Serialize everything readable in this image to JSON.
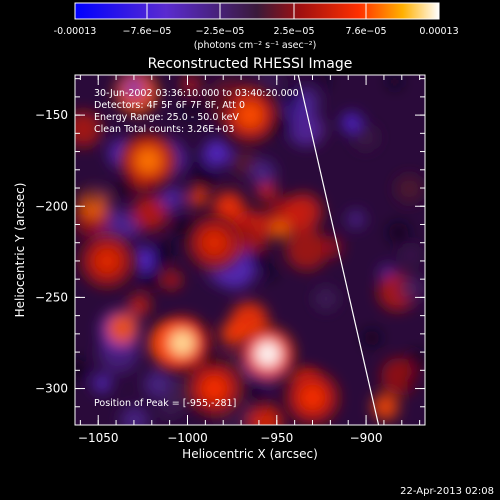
{
  "chart_data": {
    "type": "heatmap",
    "title": "Reconstructed RHESSI Image",
    "xlabel": "Heliocentric X (arcsec)",
    "ylabel": "Heliocentric Y (arcsec)",
    "xlim": [
      -1063,
      -867
    ],
    "ylim": [
      -320,
      -128
    ],
    "x_ticks": [
      -1050,
      -1000,
      -950,
      -900
    ],
    "y_ticks": [
      -150,
      -200,
      -250,
      -300
    ],
    "colorbar": {
      "range": [
        -0.00013,
        0.00013
      ],
      "tick_labels": [
        "-0.00013",
        "−7.6e−05",
        "−2.5e−05",
        "2.5e−05",
        "7.6e−05",
        "0.00013"
      ],
      "unit_label": "(photons cm⁻² s⁻¹ asec⁻²)"
    },
    "annotations": [
      "30-Jun-2002 03:36:10.000 to 03:40:20.000",
      "Detectors: 4F 5F 6F 7F 8F, Att 0",
      "Energy Range: 25.0 - 50.0 keV",
      "Clean     Total counts: 3.26E+03"
    ],
    "peak_label": "Position of Peak = [-955,-281]",
    "peak_position": [
      -955,
      -281
    ],
    "limb_line": [
      [
        -938,
        -128
      ],
      [
        -893,
        -320
      ]
    ],
    "bright_sources": [
      {
        "x": -1003,
        "y": -275,
        "value": 0.00012
      },
      {
        "x": -955,
        "y": -281,
        "value": 0.00013
      },
      {
        "x": -965,
        "y": -150,
        "value": 8e-05
      },
      {
        "x": -1022,
        "y": -175,
        "value": 9e-05
      },
      {
        "x": -1045,
        "y": -230,
        "value": 6e-05
      },
      {
        "x": -985,
        "y": -220,
        "value": 6e-05
      },
      {
        "x": -985,
        "y": -300,
        "value": 7e-05
      },
      {
        "x": -930,
        "y": -305,
        "value": 7e-05
      }
    ],
    "grid": false
  },
  "footer_date": "22-Apr-2013 02:08",
  "colors": {
    "background": "#000000",
    "text": "#ffffff"
  }
}
